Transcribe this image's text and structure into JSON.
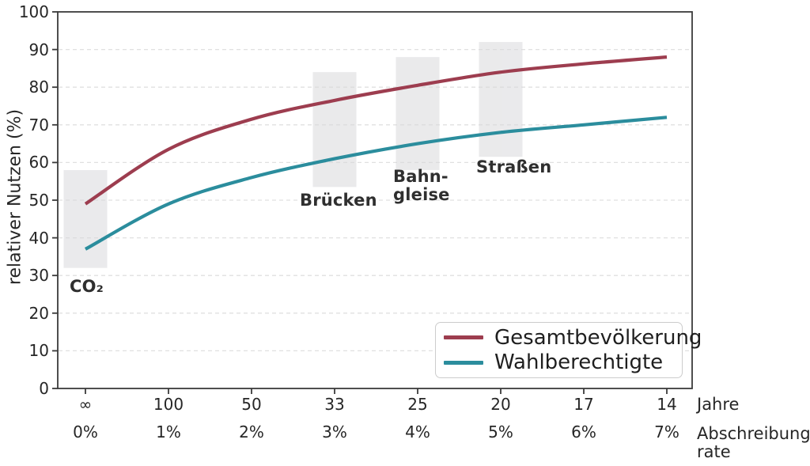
{
  "chart_data": {
    "type": "line",
    "title": "",
    "ylabel": "relativer Nutzen (%)",
    "ylim": [
      0,
      100
    ],
    "yticks": [
      0,
      10,
      20,
      30,
      40,
      50,
      60,
      70,
      80,
      90,
      100
    ],
    "grid": "horizontal-dashed",
    "grid_color": "#e0e0e0",
    "axis_color": "#3a3a3a",
    "band_color": "#d9d9dc",
    "x_axis_rows": [
      {
        "unit": "Jahre",
        "labels": [
          "∞",
          "100",
          "50",
          "33",
          "25",
          "20",
          "17",
          "14"
        ]
      },
      {
        "unit": "Abschreibungs-\nrate",
        "labels": [
          "0%",
          "1%",
          "2%",
          "3%",
          "4%",
          "5%",
          "6%",
          "7%"
        ]
      }
    ],
    "series": [
      {
        "name": "Gesamtbevölkerung",
        "color": "#9d3d4f",
        "values": [
          49,
          63.5,
          71.5,
          76.5,
          80.5,
          84,
          86.2,
          88
        ]
      },
      {
        "name": "Wahlberechtigte",
        "color": "#2b8d9d",
        "values": [
          37,
          49,
          56,
          61,
          65,
          68,
          70,
          72
        ]
      }
    ],
    "annotations": [
      {
        "label": "CO₂",
        "tick_index": 0,
        "band_range": [
          32,
          58
        ]
      },
      {
        "label": "Brücken",
        "tick_index": 3,
        "band_range": [
          53.5,
          84
        ]
      },
      {
        "label": "Bahn-\ngleise",
        "tick_index": 4,
        "band_range": [
          58,
          88
        ]
      },
      {
        "label": "Straßen",
        "tick_index": 5,
        "band_range": [
          61.5,
          92
        ]
      }
    ],
    "legend_position": "lower right"
  }
}
